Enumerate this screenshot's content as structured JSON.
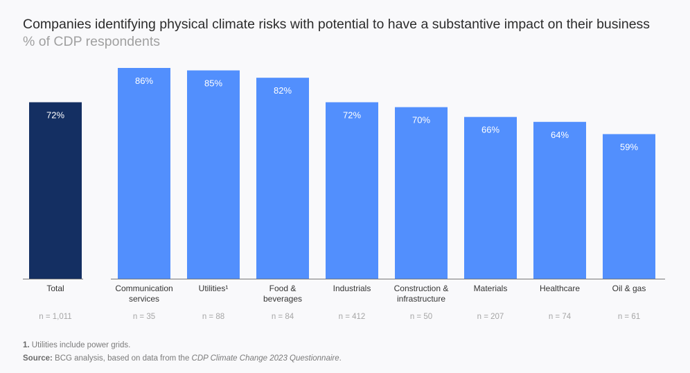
{
  "title": "Companies identifying physical climate risks with potential to have a substantive impact on their business",
  "subtitle": "% of CDP respondents",
  "chart_data": {
    "type": "bar",
    "categories": [
      [
        "Total"
      ],
      [
        "Communication",
        "services"
      ],
      [
        "Utilities¹"
      ],
      [
        "Food &",
        "beverages"
      ],
      [
        "Industrials"
      ],
      [
        "Construction &",
        "infrastructure"
      ],
      [
        "Materials"
      ],
      [
        "Healthcare"
      ],
      [
        "Oil & gas"
      ]
    ],
    "values": [
      72,
      86,
      85,
      82,
      72,
      70,
      66,
      64,
      59
    ],
    "data_labels": [
      "72%",
      "86%",
      "85%",
      "82%",
      "72%",
      "70%",
      "66%",
      "64%",
      "59%"
    ],
    "n_labels": [
      "n = 1,011",
      "n = 35",
      "n = 88",
      "n = 84",
      "n = 412",
      "n = 50",
      "n = 207",
      "n = 74",
      "n = 61"
    ],
    "ylim": [
      0,
      86
    ],
    "colors": {
      "total": "#142f62",
      "sector": "#528ffd",
      "axis": "#777777",
      "bar_label": "#ffffff",
      "n_label": "#a5a5a5"
    }
  },
  "footnote": {
    "marker": "1.",
    "text": " Utilities include power grids."
  },
  "source": {
    "label": "Source:",
    "text": " BCG analysis, based on data from the ",
    "italic": "CDP Climate Change 2023 Questionnaire",
    "end": "."
  }
}
